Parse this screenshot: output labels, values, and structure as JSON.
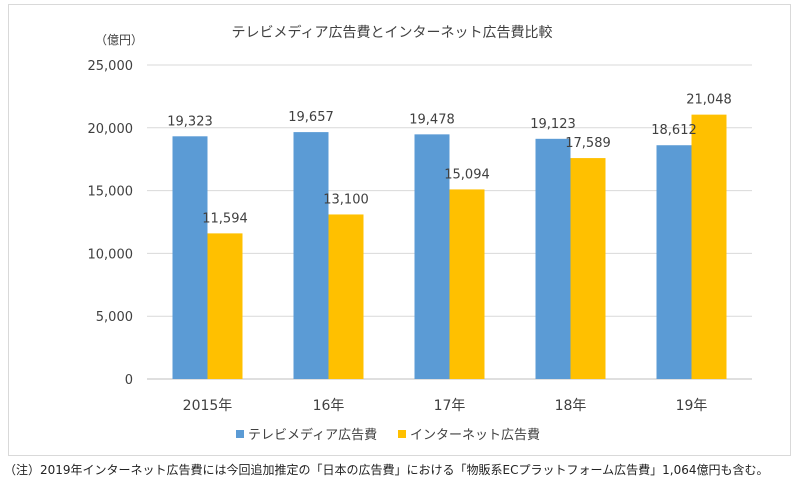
{
  "chart_data": {
    "type": "bar",
    "title": "テレビメディア広告費とインターネット広告費比較",
    "ylabel": "（億円）",
    "xlabel": "",
    "categories": [
      "2015年",
      "16年",
      "17年",
      "18年",
      "19年"
    ],
    "series": [
      {
        "name": "テレビメディア広告費",
        "color": "#5b9bd5",
        "values": [
          19323,
          19657,
          19478,
          19123,
          18612
        ]
      },
      {
        "name": "インターネット広告費",
        "color": "#ffc000",
        "values": [
          11594,
          13100,
          15094,
          17589,
          21048
        ]
      }
    ],
    "ylim": [
      0,
      25000
    ],
    "yticks": [
      "0",
      "5,000",
      "10,000",
      "15,000",
      "20,000",
      "25,000"
    ],
    "data_labels": [
      [
        "19,323",
        "19,657",
        "19,478",
        "19,123",
        "18,612"
      ],
      [
        "11,594",
        "13,100",
        "15,094",
        "17,589",
        "21,048"
      ]
    ],
    "grid": true,
    "legend_position": "bottom"
  },
  "footnote": "（注）2019年インターネット広告費には今回追加推定の「日本の広告費」における「物販系ECプラットフォーム広告費」1,064億円も含む。"
}
